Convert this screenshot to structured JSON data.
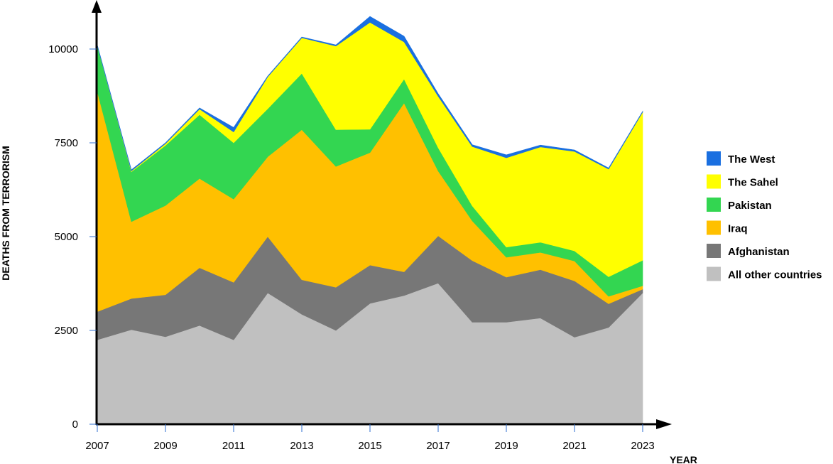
{
  "chart_data": {
    "type": "area",
    "stacked": true,
    "title": "",
    "xlabel": "YEAR",
    "ylabel": "DEATHS FROM TERRORISM",
    "x": [
      2007,
      2008,
      2009,
      2010,
      2011,
      2012,
      2013,
      2014,
      2015,
      2016,
      2017,
      2018,
      2019,
      2020,
      2021,
      2022,
      2023
    ],
    "x_ticks": [
      "2007",
      "2009",
      "2011",
      "2013",
      "2015",
      "2017",
      "2019",
      "2021",
      "2023"
    ],
    "y_ticks": [
      "0",
      "2500",
      "5000",
      "7500",
      "10000"
    ],
    "xlim": [
      2007,
      2023
    ],
    "ylim": [
      0,
      11000
    ],
    "legend_position": "right",
    "series": [
      {
        "name": "All other countries",
        "color": "#c0c0c0",
        "values": [
          2250,
          2520,
          2330,
          2630,
          2250,
          3500,
          2930,
          2500,
          3220,
          3430,
          3760,
          2720,
          2720,
          2830,
          2320,
          2580,
          3500
        ]
      },
      {
        "name": "Afghanistan",
        "color": "#777777",
        "values": [
          750,
          830,
          1120,
          1540,
          1530,
          1500,
          920,
          1150,
          1020,
          630,
          1260,
          1640,
          1200,
          1290,
          1500,
          630,
          100
        ]
      },
      {
        "name": "Iraq",
        "color": "#ffc000",
        "values": [
          5870,
          2050,
          2380,
          2380,
          2220,
          2130,
          4000,
          3220,
          3000,
          4500,
          1730,
          1060,
          530,
          460,
          530,
          200,
          90
        ]
      },
      {
        "name": "Pakistan",
        "color": "#33d651",
        "values": [
          1220,
          1330,
          1600,
          1700,
          1500,
          1280,
          1500,
          980,
          620,
          640,
          620,
          400,
          270,
          270,
          270,
          520,
          680
        ]
      },
      {
        "name": "The Sahel",
        "color": "#ffff00",
        "values": [
          0,
          20,
          50,
          150,
          290,
          850,
          950,
          2230,
          2850,
          990,
          1370,
          1580,
          2380,
          2540,
          2650,
          2870,
          3950
        ]
      },
      {
        "name": "The West",
        "color": "#1a6fe0",
        "values": [
          20,
          30,
          20,
          30,
          120,
          20,
          20,
          30,
          160,
          150,
          70,
          50,
          80,
          50,
          40,
          30,
          20
        ]
      }
    ]
  }
}
